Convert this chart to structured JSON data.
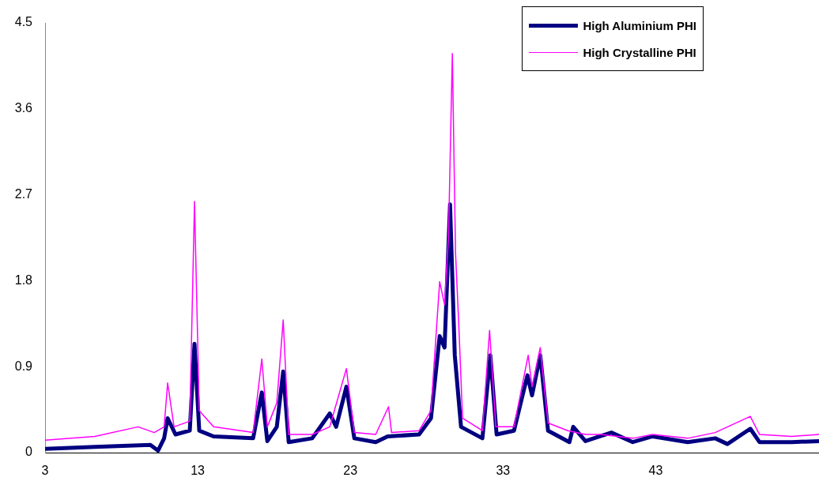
{
  "chart_data": {
    "type": "line",
    "xlim": [
      3,
      53.7
    ],
    "xticks": [
      3,
      13,
      23,
      33,
      43
    ],
    "ylim": [
      0,
      4.5
    ],
    "yticks": [
      0,
      0.9,
      1.8,
      2.7,
      3.6,
      4.5
    ],
    "grid": false,
    "legend": "top right",
    "marker": "none",
    "series": [
      {
        "name": "High Aluminium PHI",
        "color": "#000080",
        "x": [
          3,
          6.26,
          9.9,
          10.4,
          10.8,
          11.03,
          11.55,
          12.48,
          12.79,
          13.1,
          14.04,
          16.63,
          17.2,
          17.56,
          18.18,
          18.6,
          18.96,
          20.5,
          21.65,
          22.07,
          22.74,
          23.26,
          24.66,
          25.44,
          27.5,
          28.28,
          28.85,
          29.17,
          29.53,
          29.84,
          30.25,
          31.65,
          32.17,
          32.58,
          33.72,
          34.6,
          34.9,
          35.44,
          35.95,
          37.35,
          37.6,
          38.4,
          40.1,
          41.5,
          42.8,
          45.1,
          46.9,
          47.7,
          49.2,
          49.8,
          51.9,
          53.7
        ],
        "values": [
          0.04,
          0.06,
          0.08,
          0.02,
          0.15,
          0.36,
          0.19,
          0.23,
          1.14,
          0.23,
          0.17,
          0.15,
          0.63,
          0.12,
          0.27,
          0.85,
          0.11,
          0.15,
          0.41,
          0.27,
          0.69,
          0.15,
          0.11,
          0.17,
          0.19,
          0.36,
          1.22,
          1.1,
          2.6,
          1.02,
          0.27,
          0.15,
          1.02,
          0.19,
          0.23,
          0.81,
          0.6,
          1.02,
          0.23,
          0.11,
          0.27,
          0.12,
          0.21,
          0.11,
          0.17,
          0.11,
          0.15,
          0.09,
          0.25,
          0.11,
          0.11,
          0.12
        ]
      },
      {
        "name": "High Crystalline PHI",
        "color": "#ff00ff",
        "x": [
          3,
          6.26,
          9.1,
          10.15,
          10.8,
          11.03,
          11.45,
          12.48,
          12.79,
          13.1,
          14.04,
          16.63,
          17.2,
          17.56,
          18.18,
          18.6,
          18.96,
          20.5,
          21.65,
          22.74,
          23.26,
          24.66,
          25.5,
          25.7,
          27.5,
          28.28,
          28.85,
          29.17,
          29.43,
          29.68,
          29.89,
          30.1,
          30.35,
          31.65,
          32.12,
          32.53,
          33.72,
          34.65,
          34.9,
          35.44,
          35.95,
          37.25,
          38.4,
          39.4,
          41.5,
          42.8,
          45.1,
          46.9,
          49.2,
          49.8,
          51.9,
          53.7
        ],
        "values": [
          0.13,
          0.17,
          0.27,
          0.21,
          0.27,
          0.73,
          0.27,
          0.33,
          2.63,
          0.44,
          0.27,
          0.21,
          0.98,
          0.27,
          0.52,
          1.39,
          0.19,
          0.19,
          0.27,
          0.88,
          0.21,
          0.19,
          0.48,
          0.21,
          0.23,
          0.44,
          1.79,
          1.55,
          2.26,
          4.18,
          2.09,
          1.35,
          0.36,
          0.23,
          1.28,
          0.27,
          0.27,
          1.02,
          0.69,
          1.1,
          0.31,
          0.23,
          0.19,
          0.19,
          0.15,
          0.19,
          0.15,
          0.21,
          0.38,
          0.19,
          0.17,
          0.19
        ]
      }
    ]
  }
}
